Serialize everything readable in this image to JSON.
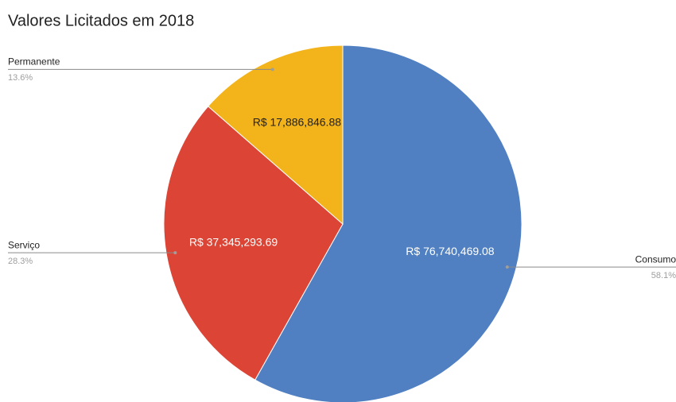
{
  "chart_data": {
    "type": "pie",
    "title": "Valores Licitados em 2018",
    "categories": [
      "Consumo",
      "Serviço",
      "Permanente"
    ],
    "values": [
      76740469.08,
      37345293.69,
      17886846.88
    ],
    "value_labels": [
      "R$ 76,740,469.08",
      "R$ 37,345,293.69",
      "R$ 17,886,846.88"
    ],
    "percents": [
      58.1,
      28.3,
      13.6
    ],
    "percent_labels": [
      "58.1%",
      "28.3%",
      "13.6%"
    ],
    "colors": [
      "#5080c1",
      "#dc4535",
      "#f2b31b"
    ]
  }
}
